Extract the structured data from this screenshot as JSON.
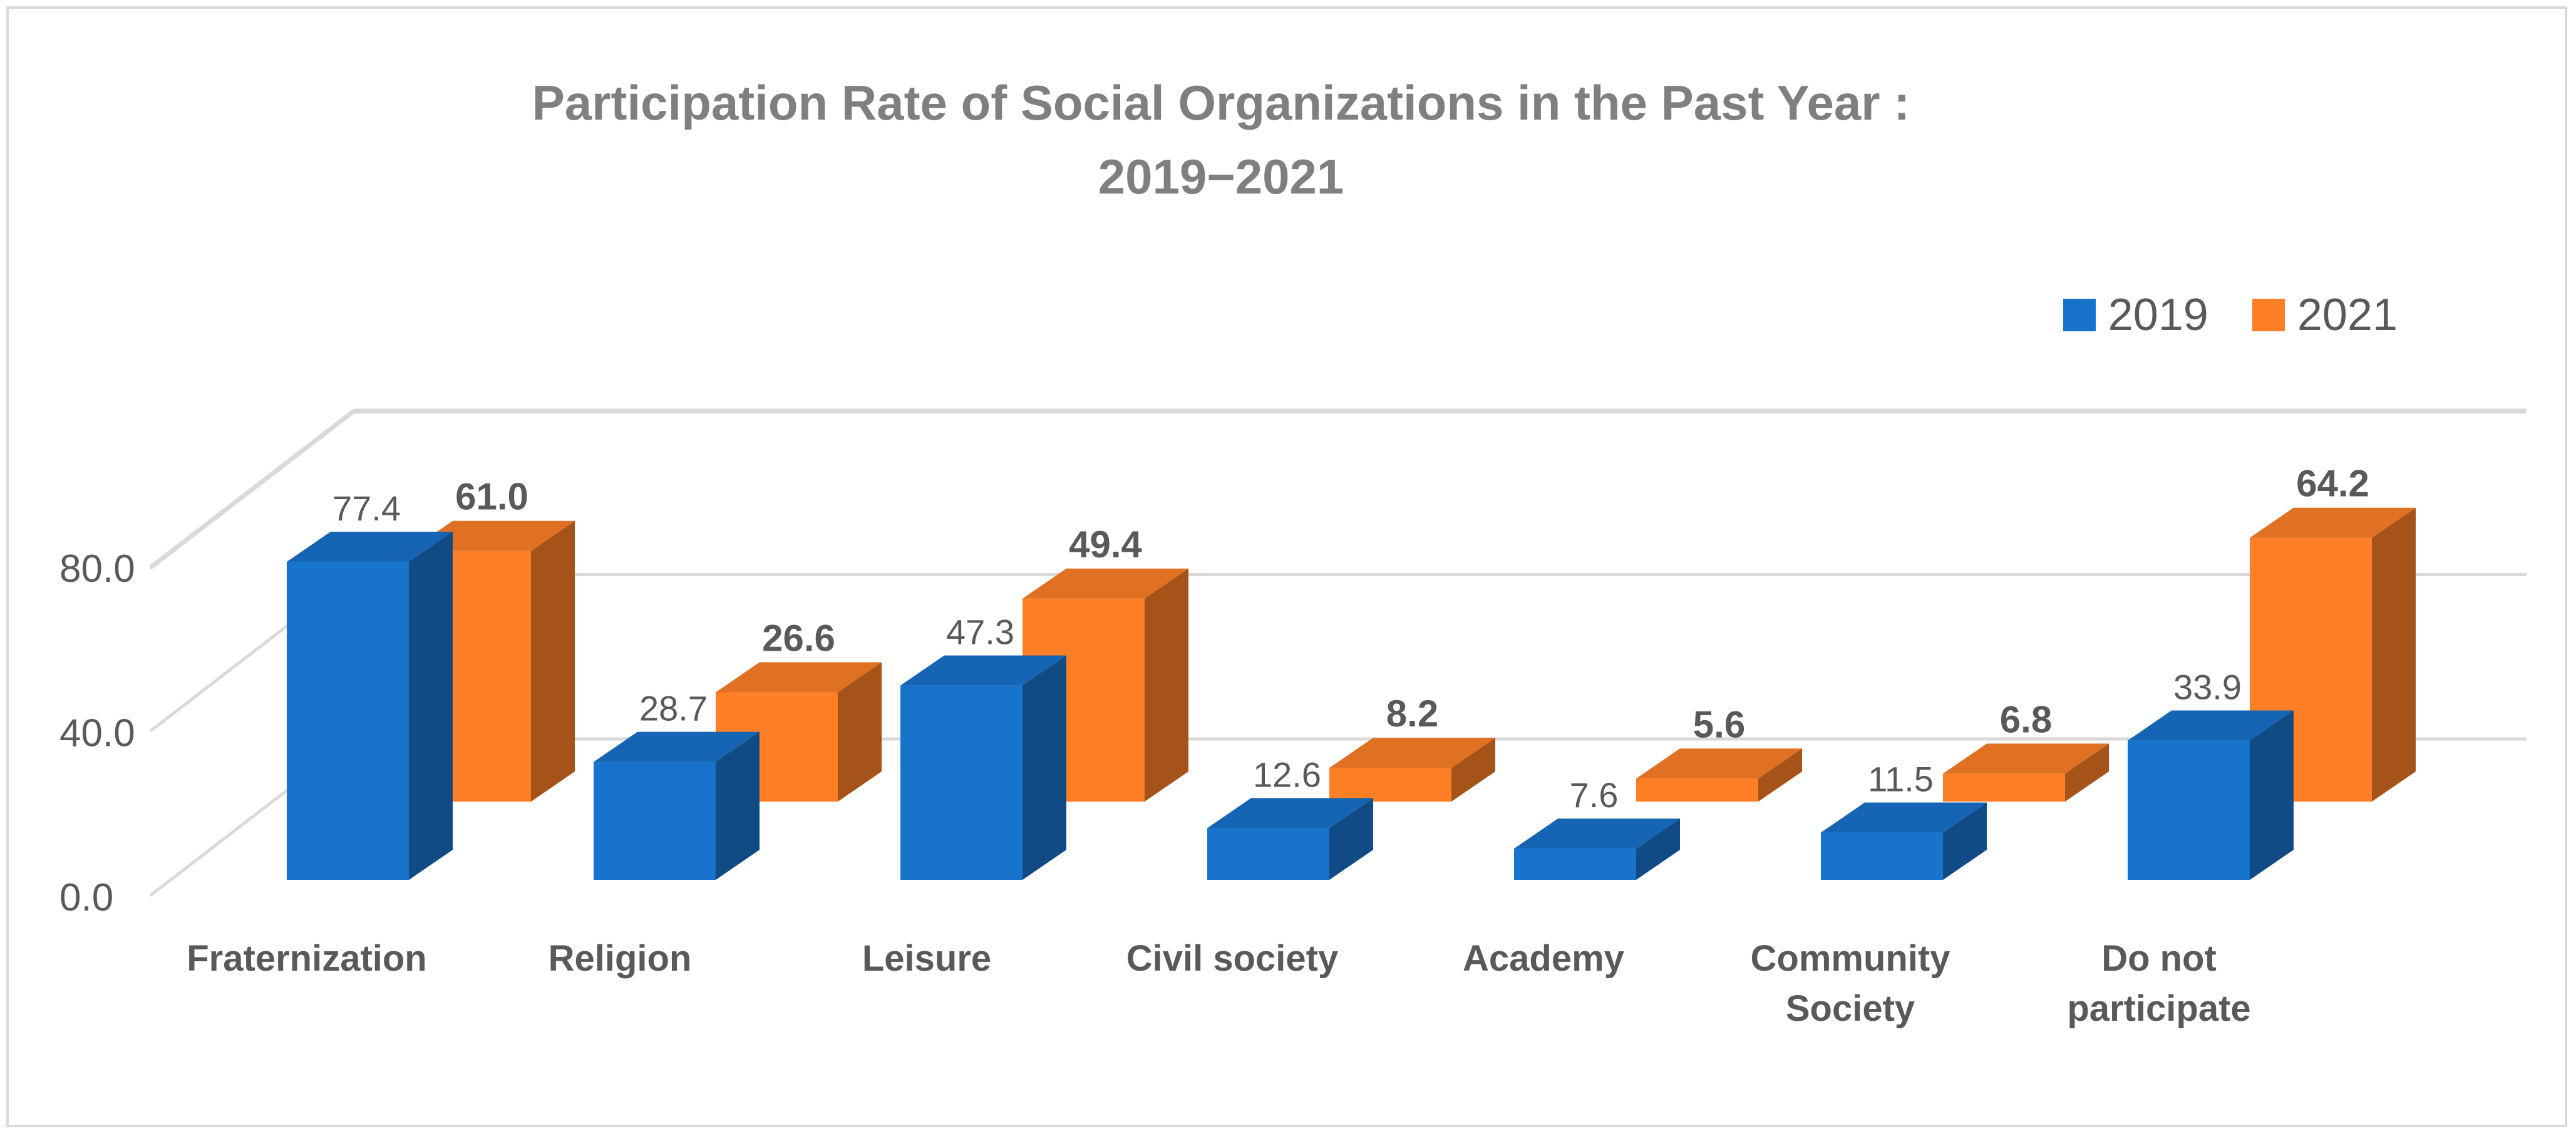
{
  "chart_data": {
    "type": "bar",
    "subtype": "3d-clustered-column",
    "title_lines": [
      "Participation Rate of Social Organizations in the Past Year :",
      "2019−2021"
    ],
    "categories": [
      [
        "Fraternization"
      ],
      [
        "Religion"
      ],
      [
        "Leisure"
      ],
      [
        "Civil society"
      ],
      [
        "Academy"
      ],
      [
        "Community",
        "Society"
      ],
      [
        "Do not",
        "participate"
      ]
    ],
    "series": [
      {
        "name": "2019",
        "color": "#1873CC",
        "values": [
          77.4,
          28.7,
          47.3,
          12.6,
          7.6,
          11.5,
          33.9
        ],
        "labels": [
          "77.4",
          "28.7",
          "47.3",
          "12.6",
          "7.6",
          "11.5",
          "33.9"
        ],
        "label_bold": false
      },
      {
        "name": "2021",
        "color": "#FF7F27",
        "values": [
          61.0,
          26.6,
          49.4,
          8.2,
          5.6,
          6.8,
          64.2
        ],
        "labels": [
          "61.0",
          "26.6",
          "49.4",
          "8.2",
          "5.6",
          "6.8",
          "64.2"
        ],
        "label_bold": true
      }
    ],
    "yticks": [
      "0.0",
      "40.0",
      "80.0"
    ],
    "ylim": [
      0,
      80
    ],
    "grid": true,
    "legend_position": "top-right"
  }
}
